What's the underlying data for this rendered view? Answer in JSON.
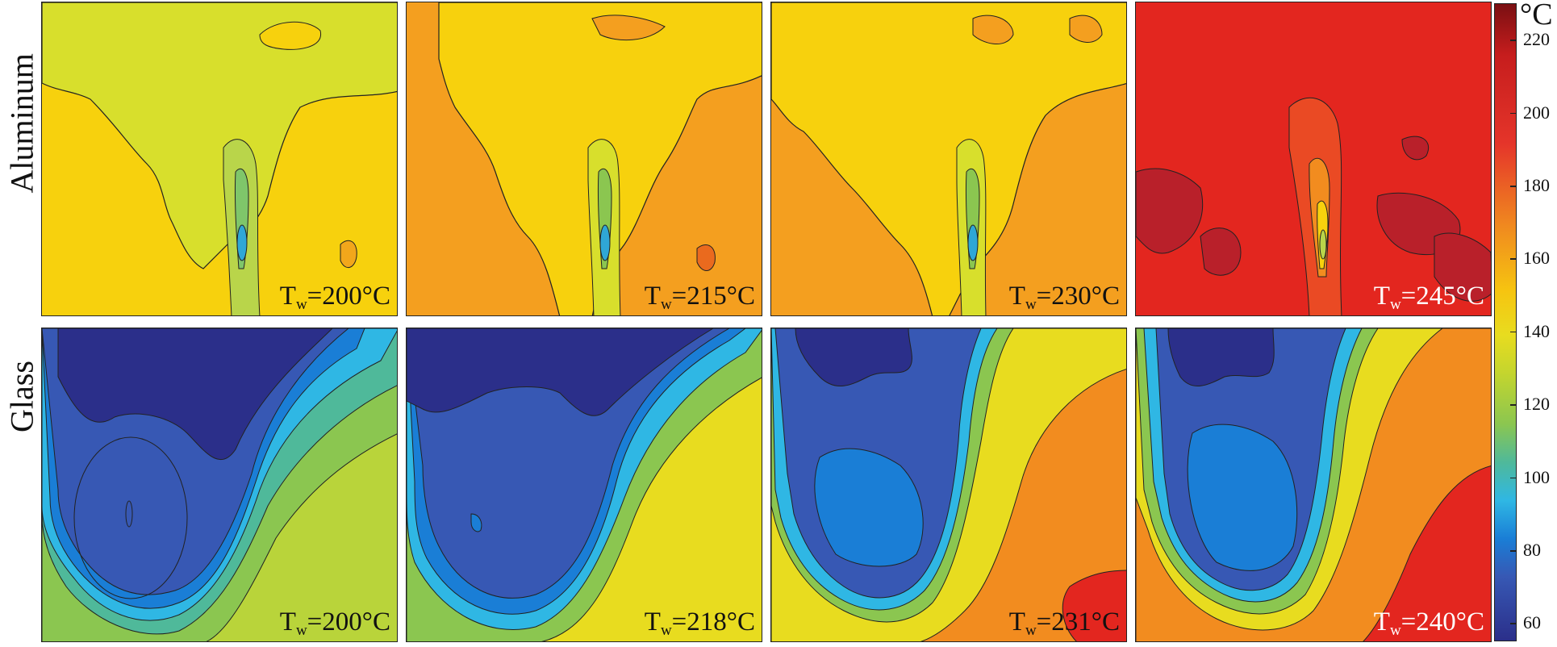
{
  "rows": [
    {
      "label": "Aluminum",
      "panels": [
        {
          "tw_prefix": "T",
          "tw_sub": "w",
          "tw_value": "=200°C",
          "color": "light-green-yellow"
        },
        {
          "tw_prefix": "T",
          "tw_sub": "w",
          "tw_value": "=215°C",
          "color": "orange-yellow"
        },
        {
          "tw_prefix": "T",
          "tw_sub": "w",
          "tw_value": "=230°C",
          "color": "yellow-orange"
        },
        {
          "tw_prefix": "T",
          "tw_sub": "w",
          "tw_value": "=245°C",
          "color": "red"
        }
      ]
    },
    {
      "label": "Glass",
      "panels": [
        {
          "tw_prefix": "T",
          "tw_sub": "w",
          "tw_value": "=200°C",
          "color": "blue-green"
        },
        {
          "tw_prefix": "T",
          "tw_sub": "w",
          "tw_value": "=218°C",
          "color": "blue-yellow"
        },
        {
          "tw_prefix": "T",
          "tw_sub": "w",
          "tw_value": "=231°C",
          "color": "blue-orange"
        },
        {
          "tw_prefix": "T",
          "tw_sub": "w",
          "tw_value": "=240°C",
          "color": "blue-red"
        }
      ]
    }
  ],
  "colorbar": {
    "unit": "°C",
    "ticks": [
      "220",
      "200",
      "180",
      "160",
      "140",
      "120",
      "100",
      "80",
      "60"
    ],
    "range": [
      55,
      230
    ]
  }
}
